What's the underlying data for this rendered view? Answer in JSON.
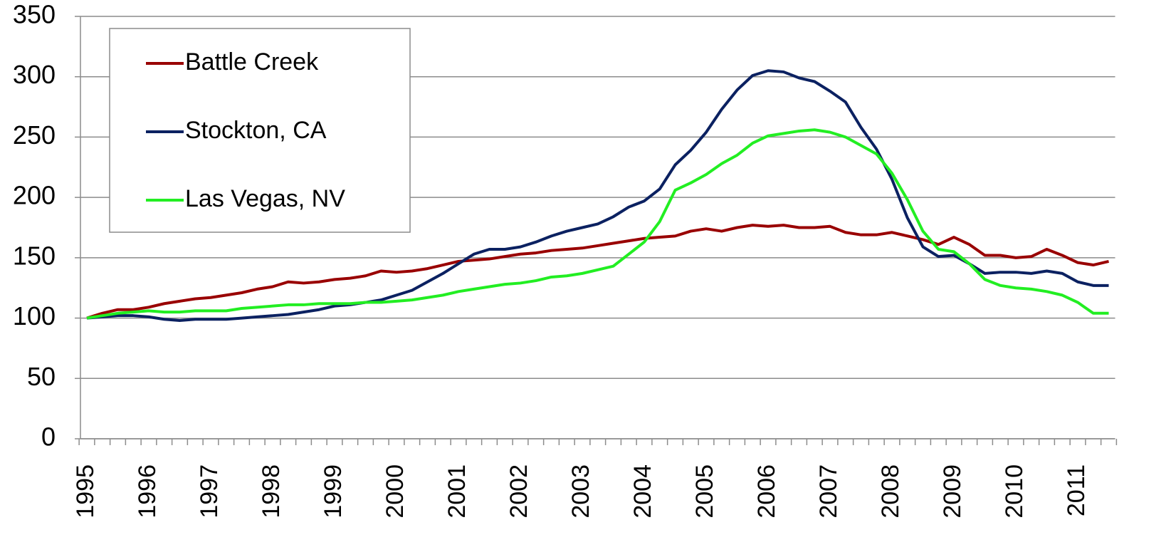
{
  "chart_data": {
    "type": "line",
    "categories": [
      "1995",
      null,
      null,
      null,
      "1996",
      null,
      null,
      null,
      "1997",
      null,
      null,
      null,
      "1998",
      null,
      null,
      null,
      "1999",
      null,
      null,
      null,
      "2000",
      null,
      null,
      null,
      "2001",
      null,
      null,
      null,
      "2002",
      null,
      null,
      null,
      "2003",
      null,
      null,
      null,
      "2004",
      null,
      null,
      null,
      "2005",
      null,
      null,
      null,
      "2006",
      null,
      null,
      null,
      "2007",
      null,
      null,
      null,
      "2008",
      null,
      null,
      null,
      "2009",
      null,
      null,
      null,
      "2010",
      null,
      null,
      null,
      "2011",
      null,
      null
    ],
    "series": [
      {
        "name": "Battle Creek",
        "color": "#990000",
        "values": [
          100,
          104,
          107,
          107,
          109,
          112,
          114,
          116,
          117,
          119,
          121,
          124,
          126,
          130,
          129,
          130,
          132,
          133,
          135,
          139,
          138,
          139,
          141,
          144,
          147,
          148,
          149,
          151,
          153,
          154,
          156,
          157,
          158,
          160,
          162,
          164,
          166,
          167,
          168,
          172,
          174,
          172,
          175,
          177,
          176,
          177,
          175,
          175,
          176,
          171,
          169,
          169,
          171,
          168,
          165,
          161,
          167,
          161,
          152,
          152,
          150,
          151,
          157,
          152,
          146,
          144,
          147
        ]
      },
      {
        "name": "Stockton, CA",
        "color": "#0b2161",
        "values": [
          100,
          101,
          102,
          102,
          101,
          99,
          98,
          99,
          99,
          99,
          100,
          101,
          102,
          103,
          105,
          107,
          110,
          111,
          113,
          115,
          119,
          123,
          130,
          137,
          145,
          153,
          157,
          157,
          159,
          163,
          168,
          172,
          175,
          178,
          184,
          192,
          197,
          207,
          227,
          239,
          254,
          273,
          289,
          301,
          305,
          304,
          299,
          296,
          288,
          279,
          258,
          240,
          215,
          183,
          159,
          151,
          152,
          145,
          137,
          138,
          138,
          137,
          139,
          137,
          130,
          127,
          127
        ]
      },
      {
        "name": "Las Vegas, NV",
        "color": "#22ee22",
        "values": [
          100,
          102,
          104,
          105,
          106,
          105,
          105,
          106,
          106,
          106,
          108,
          109,
          110,
          111,
          111,
          112,
          112,
          112,
          113,
          113,
          114,
          115,
          117,
          119,
          122,
          124,
          126,
          128,
          129,
          131,
          134,
          135,
          137,
          140,
          143,
          153,
          163,
          180,
          206,
          212,
          219,
          228,
          235,
          245,
          251,
          253,
          255,
          256,
          254,
          250,
          243,
          236,
          220,
          198,
          172,
          157,
          155,
          145,
          132,
          127,
          125,
          124,
          122,
          119,
          113,
          104,
          104
        ]
      }
    ],
    "ylim": [
      0,
      350
    ],
    "yticks": [
      0,
      50,
      100,
      150,
      200,
      250,
      300,
      350
    ],
    "grid": true,
    "legend": "top-left"
  }
}
